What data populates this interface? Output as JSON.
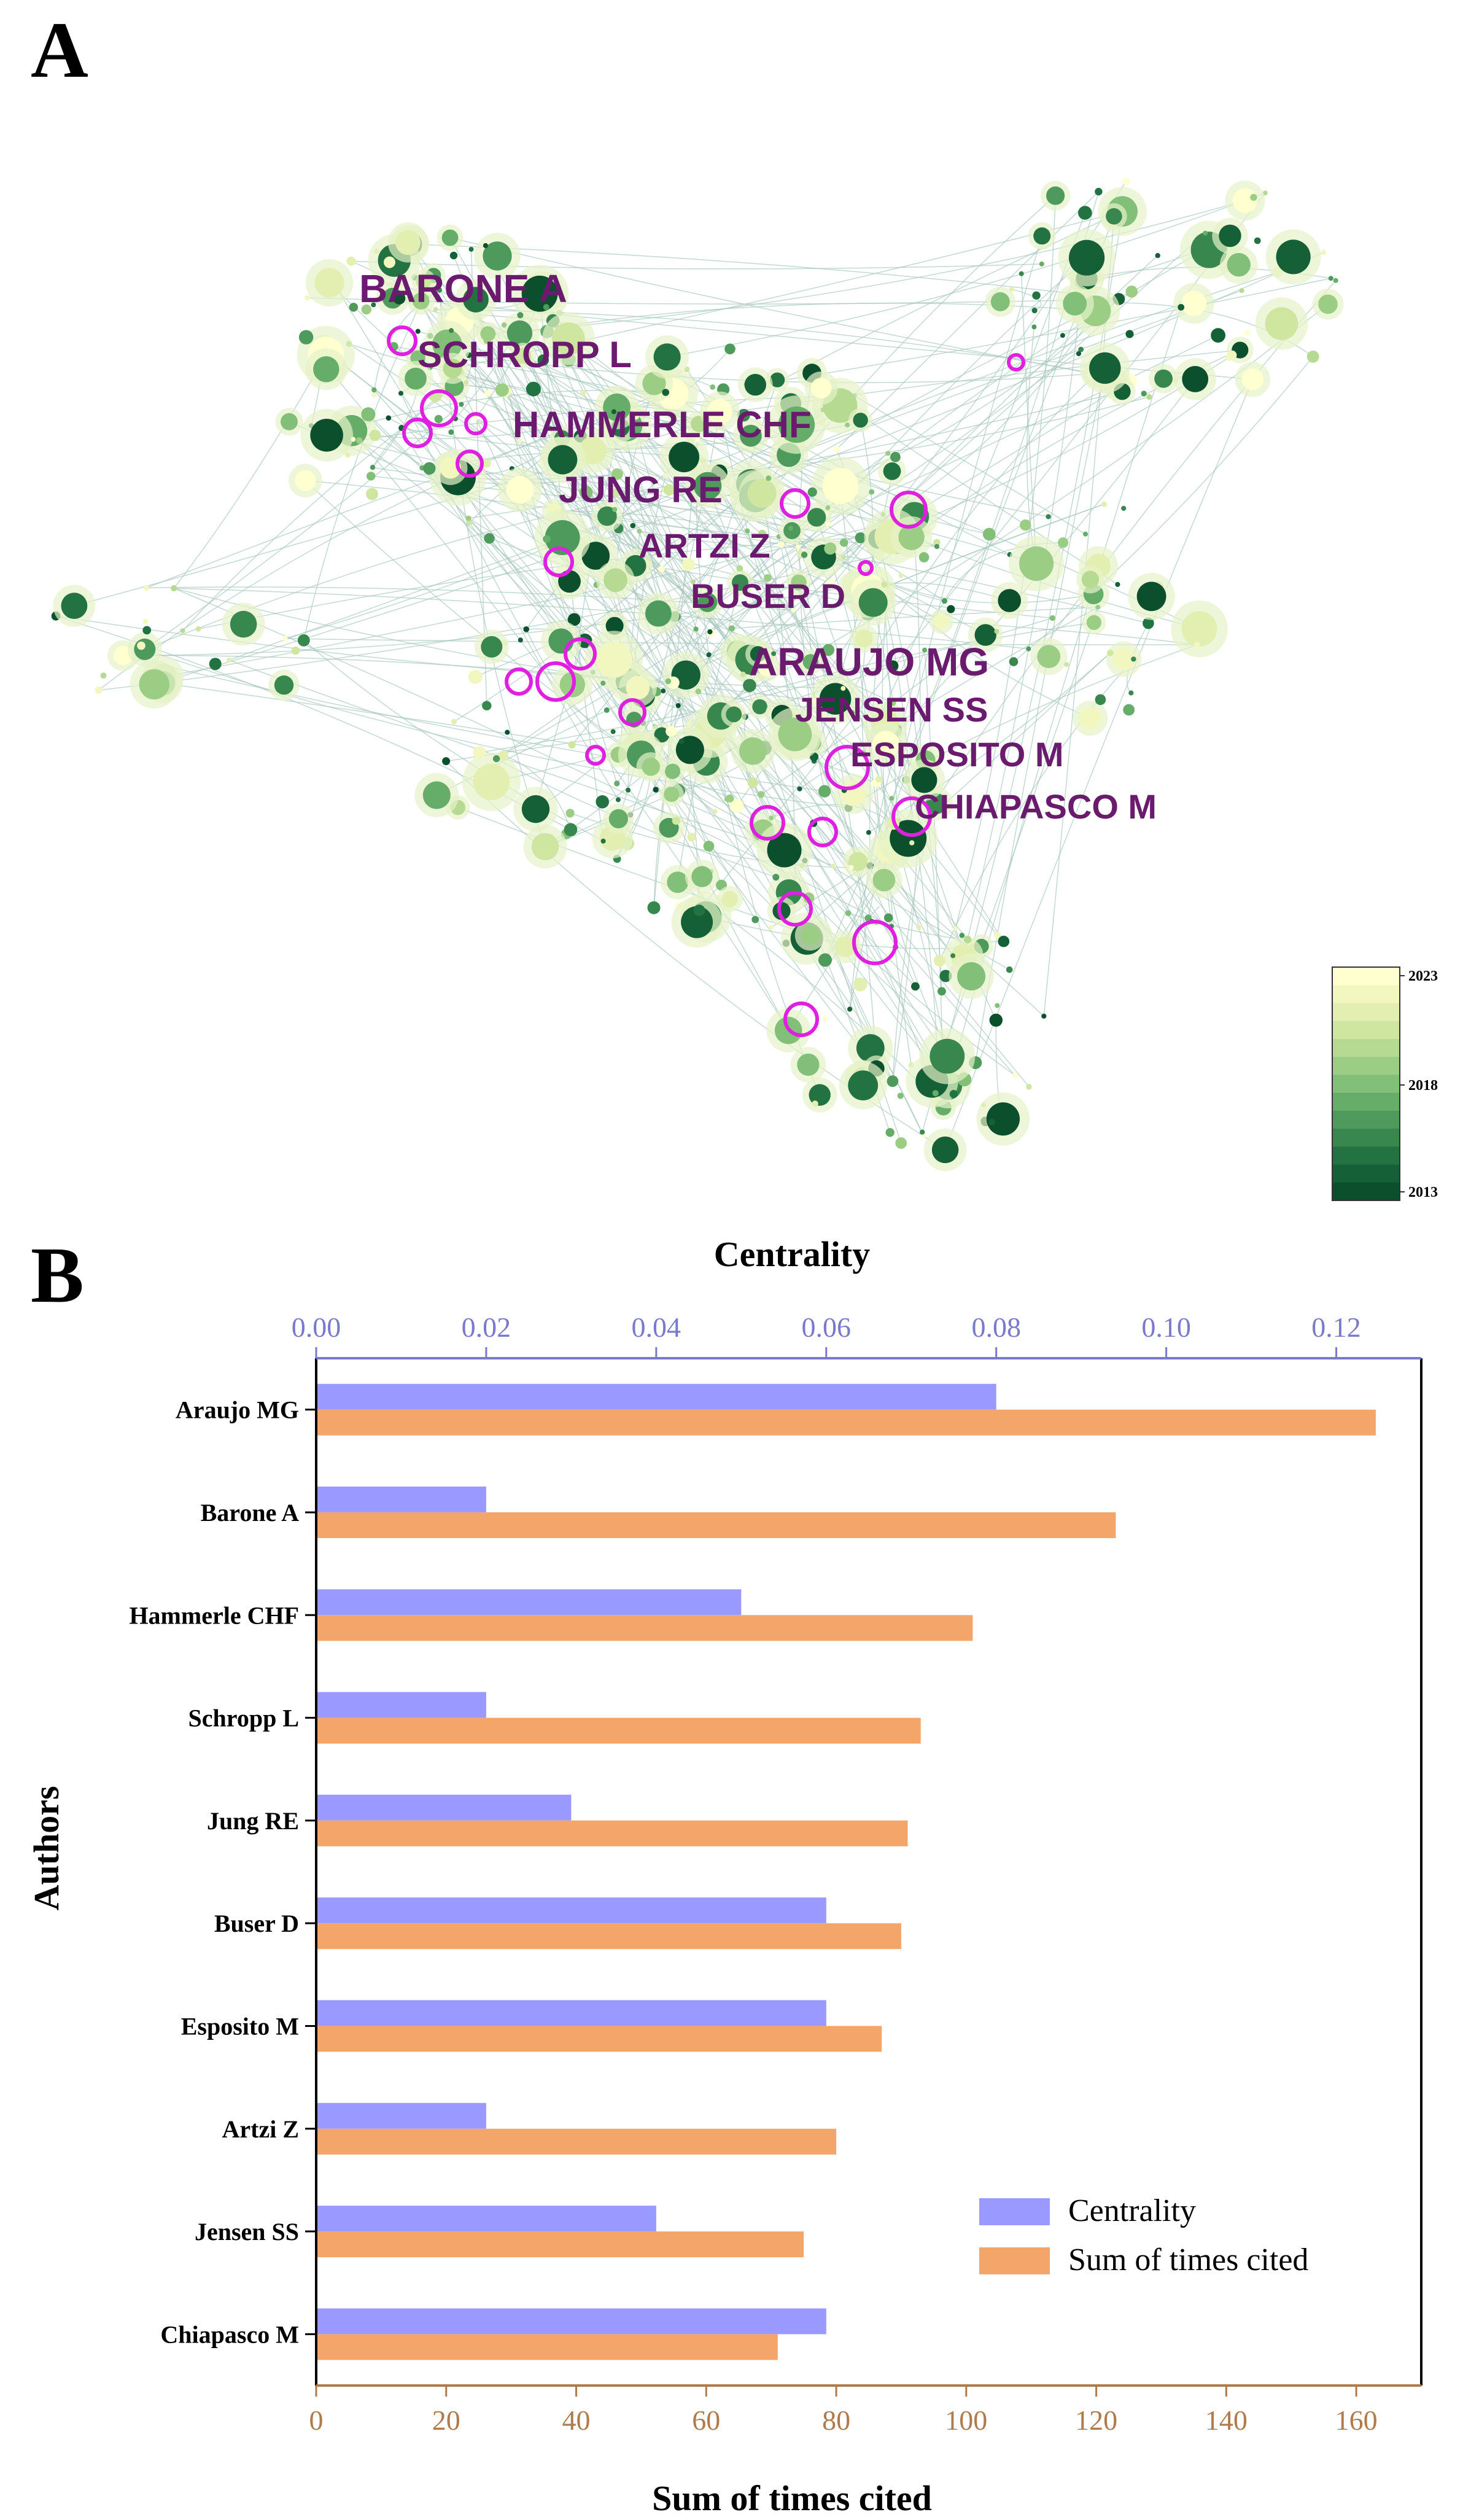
{
  "panels": {
    "a_letter": "A",
    "b_letter": "B"
  },
  "network": {
    "labels": [
      "BARONE A",
      "SCHROPP L",
      "HAMMERLE CHF",
      "JUNG RE",
      "ARTZI Z",
      "BUSER D",
      "ARAUJO MG",
      "JENSEN SS",
      "ESPOSITO M",
      "CHIAPASCO M"
    ],
    "colorbar": {
      "ticks": [
        "2023",
        "2018",
        "2013"
      ],
      "colors": [
        "#ffffd0",
        "#f2f7c0",
        "#e3efb0",
        "#cfe6a1",
        "#b6da92",
        "#9ccd84",
        "#82bf78",
        "#66ad69",
        "#4d9a5c",
        "#37874f",
        "#237342",
        "#156036",
        "#0c4f2c"
      ]
    },
    "colors": {
      "label": "#6a1b6e",
      "ring": "#e020e0"
    }
  },
  "chart_data": {
    "type": "bar",
    "orientation": "horizontal",
    "categories": [
      "Araujo MG",
      "Barone A",
      "Hammerle CHF",
      "Schropp L",
      "Jung RE",
      "Buser D",
      "Esposito M",
      "Artzi Z",
      "Jensen SS",
      "Chiapasco M"
    ],
    "series": [
      {
        "name": "Centrality",
        "axis": "top",
        "color": "#9999ff",
        "values": [
          0.08,
          0.02,
          0.05,
          0.02,
          0.03,
          0.06,
          0.06,
          0.02,
          0.04,
          0.06
        ]
      },
      {
        "name": "Sum of times cited",
        "axis": "bottom",
        "color": "#f4a66a",
        "values": [
          163,
          123,
          101,
          93,
          91,
          90,
          87,
          80,
          75,
          71
        ]
      }
    ],
    "top_axis": {
      "label": "Centrality",
      "range": [
        0,
        0.13
      ],
      "ticks": [
        "0.00",
        "0.02",
        "0.04",
        "0.06",
        "0.08",
        "0.10",
        "0.12"
      ],
      "tick_values": [
        0,
        0.02,
        0.04,
        0.06,
        0.08,
        0.1,
        0.12
      ],
      "color": "#7a7acc"
    },
    "bottom_axis": {
      "label": "Sum of times cited",
      "range": [
        0,
        170
      ],
      "ticks": [
        "0",
        "20",
        "40",
        "60",
        "80",
        "100",
        "120",
        "140",
        "160"
      ],
      "tick_values": [
        0,
        20,
        40,
        60,
        80,
        100,
        120,
        140,
        160
      ],
      "color": "#b07a4a"
    },
    "ylabel": "Authors",
    "legend": {
      "position": "bottom-right",
      "entries": [
        "Centrality",
        "Sum of times cited"
      ]
    }
  }
}
